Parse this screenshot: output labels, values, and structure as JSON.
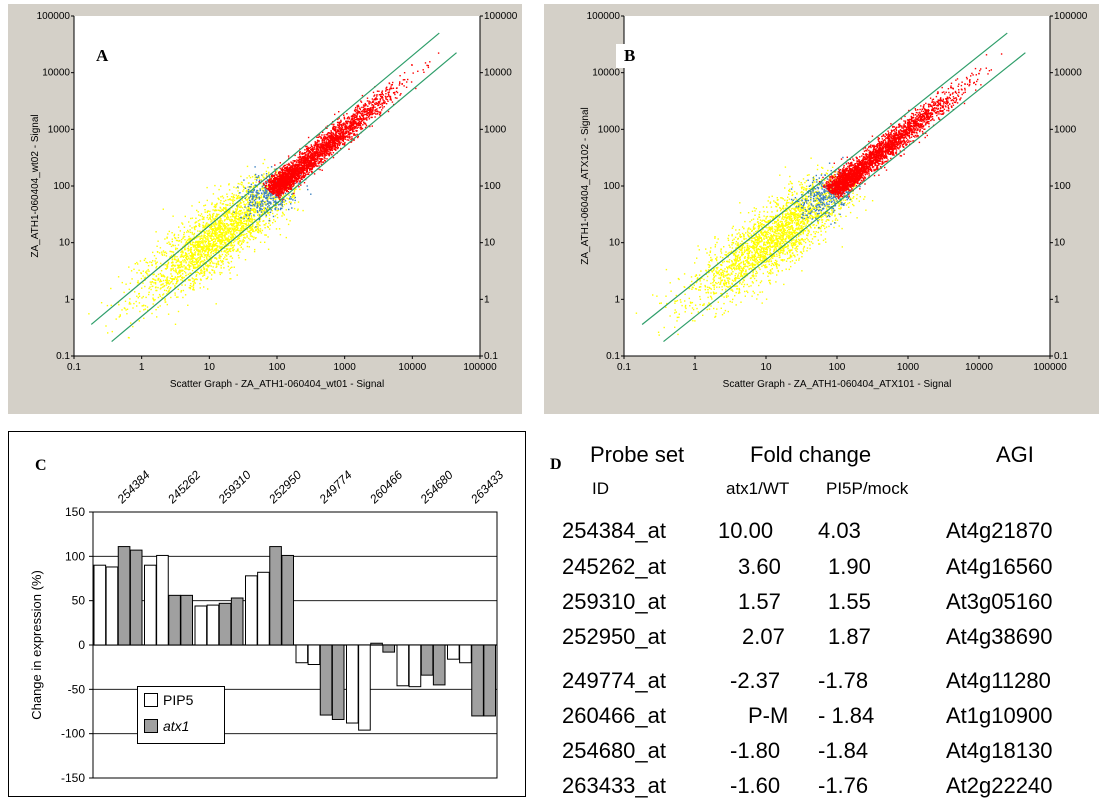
{
  "chart_data": [
    {
      "type": "scatter",
      "panel_label": "A",
      "xlabel": "Scatter Graph - ZA_ATH1-060404_wt01 - Signal",
      "ylabel": "ZA_ATH1-060404_wt02 - Signal",
      "x_scale": "log",
      "y_scale": "log",
      "xlim": [
        0.1,
        100000
      ],
      "ylim": [
        0.1,
        100000
      ],
      "x_ticks": [
        "0.1",
        "1",
        "10",
        "100",
        "1000",
        "10000",
        "100000"
      ],
      "y_ticks": [
        "0.1",
        "1",
        "10",
        "100",
        "1000",
        "10000",
        "100000"
      ],
      "fold_lines": [
        0.5,
        2
      ],
      "series": [
        {
          "color": "#ffff00",
          "x_range": [
            0.3,
            150
          ],
          "y_range": [
            0.3,
            150
          ]
        },
        {
          "color": "#3a80c0",
          "x_range": [
            30,
            200
          ],
          "y_range": [
            30,
            200
          ]
        },
        {
          "color": "#ff0000",
          "x_range": [
            80,
            40000
          ],
          "y_range": [
            80,
            40000
          ]
        }
      ]
    },
    {
      "type": "scatter",
      "panel_label": "B",
      "xlabel": "Scatter Graph - ZA_ATH1-060404_ATX101 - Signal",
      "ylabel": "ZA_ATH1-060404_ATX102 - Signal",
      "x_scale": "log",
      "y_scale": "log",
      "xlim": [
        0.1,
        100000
      ],
      "ylim": [
        0.1,
        100000
      ],
      "x_ticks": [
        "0.1",
        "1",
        "10",
        "100",
        "1000",
        "10000",
        "100000"
      ],
      "y_ticks": [
        "0.1",
        "1",
        "10",
        "100",
        "1000",
        "10000",
        "100000"
      ],
      "fold_lines": [
        0.5,
        2
      ],
      "series": [
        {
          "color": "#ffff00",
          "x_range": [
            0.3,
            150
          ],
          "y_range": [
            0.3,
            150
          ]
        },
        {
          "color": "#3a80c0",
          "x_range": [
            30,
            200
          ],
          "y_range": [
            30,
            200
          ]
        },
        {
          "color": "#ff0000",
          "x_range": [
            80,
            40000
          ],
          "y_range": [
            80,
            40000
          ]
        }
      ]
    },
    {
      "type": "bar",
      "panel_label": "C",
      "categories": [
        "254384",
        "245262",
        "259310",
        "252950",
        "249774",
        "260466",
        "254680",
        "263433"
      ],
      "ylabel": "Change in expression (%)",
      "ylim": [
        -150,
        150
      ],
      "y_ticks": [
        "150",
        "100",
        "50",
        "0",
        "-50",
        "-100",
        "-150"
      ],
      "series": [
        {
          "name": "PIP5",
          "color": "#ffffff",
          "values": [
            [
              90,
              88
            ],
            [
              90,
              101
            ],
            [
              44,
              45
            ],
            [
              78,
              82
            ],
            [
              -20,
              -22
            ],
            [
              -88,
              -96
            ],
            [
              -46,
              -47
            ],
            [
              -16,
              -20
            ]
          ]
        },
        {
          "name": "atx1",
          "color": "#a0a0a0",
          "values": [
            [
              111,
              107
            ],
            [
              56,
              56
            ],
            [
              47,
              53
            ],
            [
              111,
              101
            ],
            [
              -79,
              -84
            ],
            [
              2,
              -8
            ],
            [
              -34,
              -45
            ],
            [
              -80,
              -80
            ]
          ]
        }
      ],
      "legend": {
        "placement": "bottom-left",
        "labels": [
          "PIP5",
          "atx1"
        ]
      }
    }
  ],
  "table": {
    "panel_label": "D",
    "headers": [
      "Probe set",
      "Fold change",
      "AGI"
    ],
    "subheaders": [
      "ID",
      "atx1/WT",
      "PI5P/mock"
    ],
    "rows": [
      [
        "254384_at",
        "10.00",
        "4.03",
        "At4g21870"
      ],
      [
        "245262_at",
        "3.60",
        "1.90",
        "At4g16560"
      ],
      [
        "259310_at",
        "1.57",
        "1.55",
        "At3g05160"
      ],
      [
        "252950_at",
        "2.07",
        "1.87",
        "At4g38690"
      ],
      [
        "249774_at",
        "-2.37",
        "-1.78",
        "At4g11280"
      ],
      [
        "260466_at",
        "P-M",
        "- 1.84",
        "At1g10900"
      ],
      [
        "254680_at",
        "-1.80",
        "-1.84",
        "At4g18130"
      ],
      [
        "263433_at",
        "-1.60",
        "-1.76",
        "At2g22240"
      ]
    ]
  }
}
